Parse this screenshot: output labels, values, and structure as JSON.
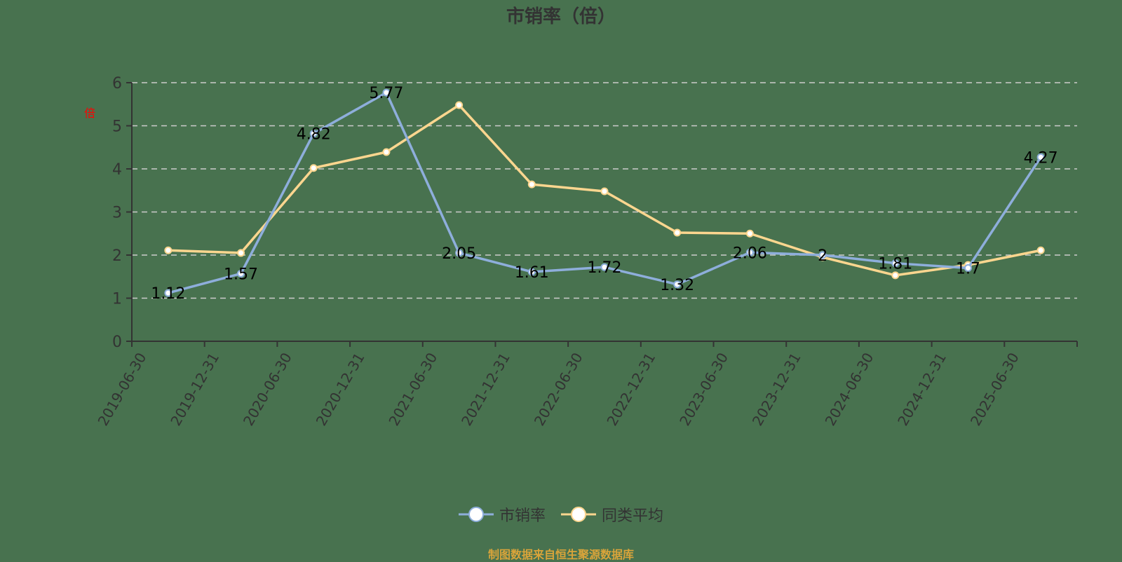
{
  "title": "市销率（倍）",
  "y_axis_unit_label": "倍",
  "legend": [
    {
      "label": "市销率",
      "color": "#8eaedb"
    },
    {
      "label": "同类平均",
      "color": "#fcd68f"
    }
  ],
  "footer": "制图数据来自恒生聚源数据库",
  "colors": {
    "background": "#48724f",
    "series_main": "#8eaedb",
    "series_peer": "#fcd68f",
    "grid": "#cccccc",
    "axis": "#333333",
    "footer": "#d9a43a",
    "unit_label": "#ff0000"
  },
  "chart_data": {
    "type": "line",
    "title": "市销率（倍）",
    "xlabel": "",
    "ylabel": "倍",
    "ylim": [
      0,
      6
    ],
    "yticks": [
      0,
      1,
      2,
      3,
      4,
      5,
      6
    ],
    "grid": true,
    "legend_position": "bottom",
    "categories": [
      "2019-06-30",
      "2019-12-31",
      "2020-06-30",
      "2020-12-31",
      "2021-06-30",
      "2021-12-31",
      "2022-06-30",
      "2022-12-31",
      "2023-06-30",
      "2023-12-31",
      "2024-06-30",
      "2024-12-31",
      "2025-06-30"
    ],
    "series": [
      {
        "name": "市销率",
        "values": [
          1.12,
          1.57,
          4.82,
          5.77,
          2.05,
          1.61,
          1.72,
          1.32,
          2.06,
          2,
          1.81,
          1.7,
          4.27
        ],
        "labels": [
          "1.12",
          "1.57",
          "4.82",
          "5.77",
          "2.05",
          "1.61",
          "1.72",
          "1.32",
          "2.06",
          "2",
          "1.81",
          "1.7",
          "4.27"
        ],
        "show_labels": true
      },
      {
        "name": "同类平均",
        "values": [
          2.11,
          2.05,
          4.02,
          4.39,
          5.48,
          3.64,
          3.48,
          2.52,
          2.5,
          1.95,
          1.53,
          1.77,
          2.11
        ],
        "show_labels": false
      }
    ]
  }
}
